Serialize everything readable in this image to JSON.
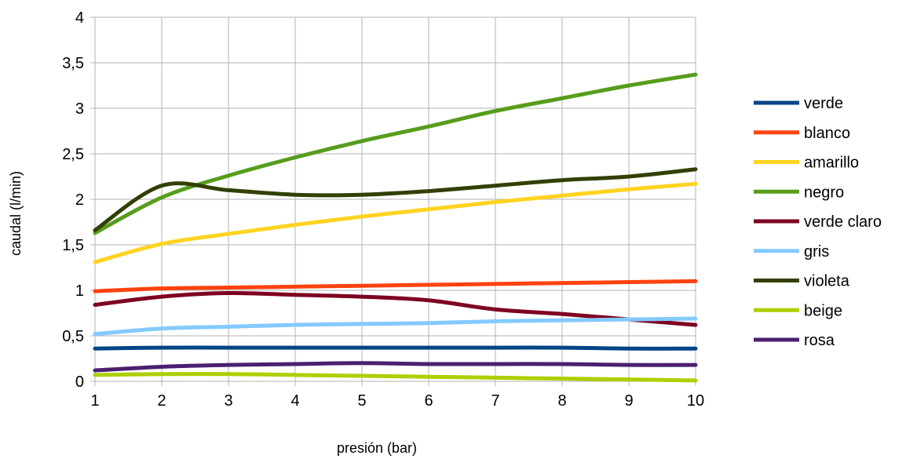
{
  "chart_data": {
    "type": "line",
    "title": "",
    "xlabel": "presión (bar)",
    "ylabel": "caudal (l/min)",
    "xlim": [
      1,
      10
    ],
    "ylim": [
      0,
      4
    ],
    "x_ticks": [
      "1",
      "2",
      "3",
      "4",
      "5",
      "6",
      "7",
      "8",
      "9",
      "10"
    ],
    "y_ticks": [
      "0",
      "0,5",
      "1",
      "1,5",
      "2",
      "2,5",
      "3",
      "3,5",
      "4"
    ],
    "grid": true,
    "legend_position": "right",
    "x": [
      1,
      2,
      3,
      4,
      5,
      6,
      7,
      8,
      9,
      10
    ],
    "series": [
      {
        "name": "verde",
        "color": "#004586",
        "values": [
          0.36,
          0.37,
          0.37,
          0.37,
          0.37,
          0.37,
          0.37,
          0.37,
          0.36,
          0.36
        ]
      },
      {
        "name": "blanco",
        "color": "#ff420e",
        "values": [
          0.99,
          1.02,
          1.03,
          1.04,
          1.05,
          1.06,
          1.07,
          1.08,
          1.09,
          1.1
        ]
      },
      {
        "name": "amarillo",
        "color": "#ffd320",
        "values": [
          1.31,
          1.51,
          1.62,
          1.72,
          1.81,
          1.89,
          1.97,
          2.04,
          2.11,
          2.17
        ]
      },
      {
        "name": "negro",
        "color": "#579d1c",
        "values": [
          1.63,
          2.02,
          2.26,
          2.46,
          2.64,
          2.8,
          2.97,
          3.11,
          3.25,
          3.37
        ]
      },
      {
        "name": "verde claro",
        "color": "#7e0021",
        "values": [
          0.84,
          0.93,
          0.97,
          0.95,
          0.93,
          0.89,
          0.79,
          0.74,
          0.68,
          0.62
        ]
      },
      {
        "name": "gris",
        "color": "#83caff",
        "values": [
          0.52,
          0.58,
          0.6,
          0.62,
          0.63,
          0.64,
          0.66,
          0.67,
          0.68,
          0.69
        ]
      },
      {
        "name": "violeta",
        "color": "#314004",
        "values": [
          1.66,
          2.15,
          2.1,
          2.05,
          2.05,
          2.09,
          2.15,
          2.21,
          2.25,
          2.33
        ]
      },
      {
        "name": "beige",
        "color": "#aecf00",
        "values": [
          0.07,
          0.08,
          0.08,
          0.07,
          0.06,
          0.05,
          0.04,
          0.03,
          0.02,
          0.01
        ]
      },
      {
        "name": "rosa",
        "color": "#4b1f6f",
        "values": [
          0.12,
          0.16,
          0.18,
          0.19,
          0.2,
          0.19,
          0.19,
          0.19,
          0.18,
          0.18
        ]
      }
    ]
  }
}
